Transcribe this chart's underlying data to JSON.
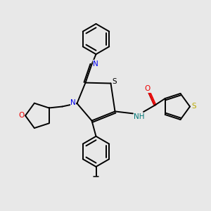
{
  "bg_color": "#e8e8e8",
  "bond_color": "#000000",
  "N_color": "#0000ee",
  "O_color": "#ee0000",
  "S_color": "#bbaa00",
  "NH_color": "#007777",
  "fig_w": 3.0,
  "fig_h": 3.0,
  "dpi": 100,
  "xlim": [
    0,
    10
  ],
  "ylim": [
    0,
    10
  ]
}
